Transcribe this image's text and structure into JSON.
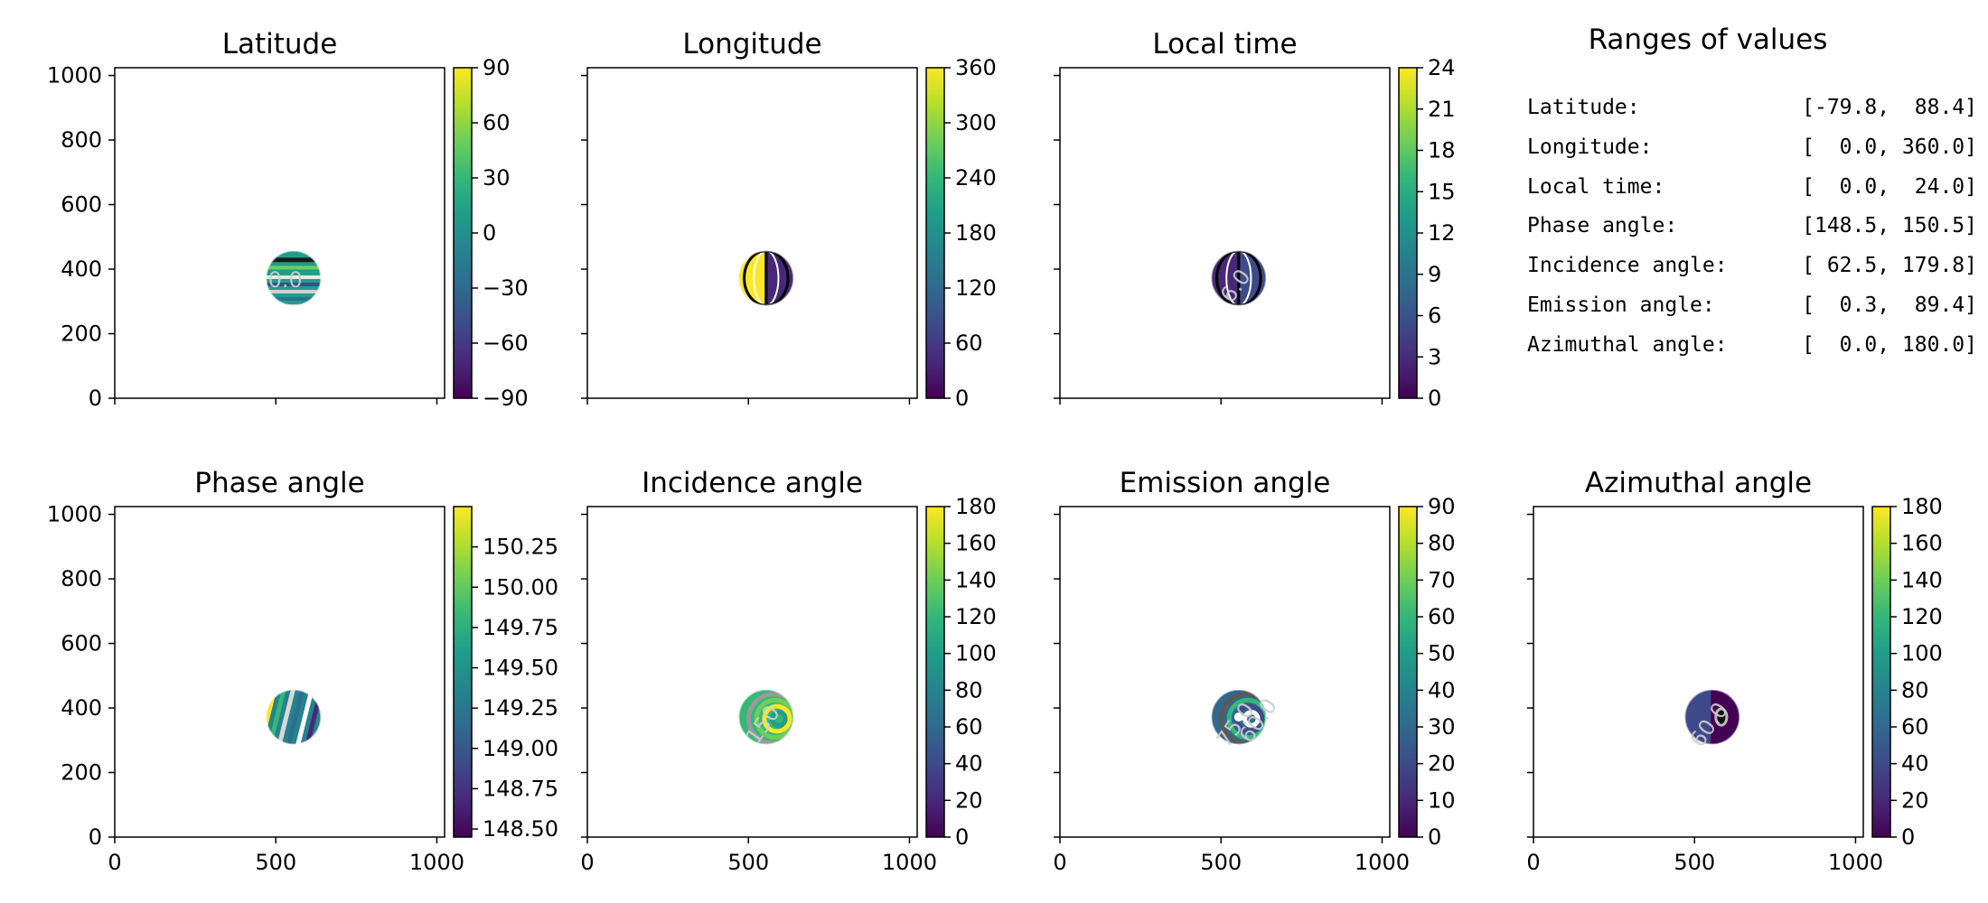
{
  "colors": {
    "cmap": [
      "#440154",
      "#482878",
      "#3e4a89",
      "#31688e",
      "#26828e",
      "#1f9e89",
      "#35b779",
      "#6ece58",
      "#b5de2b",
      "#fde725"
    ]
  },
  "ranges": {
    "title": "Ranges of values",
    "rows": [
      {
        "name": "Latitude:",
        "value": "[-79.8,  88.4]"
      },
      {
        "name": "Longitude:",
        "value": "[  0.0, 360.0]"
      },
      {
        "name": "Local time:",
        "value": "[  0.0,  24.0]"
      },
      {
        "name": "Phase angle:",
        "value": "[148.5, 150.5]"
      },
      {
        "name": "Incidence angle:",
        "value": "[ 62.5, 179.8]"
      },
      {
        "name": "Emission angle:",
        "value": "[  0.3,  89.4]"
      },
      {
        "name": "Azimuthal angle:",
        "value": "[  0.0, 180.0]"
      }
    ]
  },
  "chart_data": [
    {
      "type": "heatmap",
      "title": "Latitude",
      "xlim": [
        0,
        1024
      ],
      "ylim": [
        0,
        1024
      ],
      "xticks": [
        0,
        500,
        1000
      ],
      "yticks": [
        0,
        200,
        400,
        600,
        800,
        1000
      ],
      "colorbar": {
        "range": [
          -90,
          90
        ],
        "ticks": [
          90,
          60,
          30,
          0,
          -30,
          -60,
          -90
        ],
        "labels": [
          "90",
          "60",
          "30",
          "0",
          "−30",
          "−60",
          "−90"
        ]
      },
      "disc": {
        "center": [
          555,
          372
        ],
        "radius": 85
      },
      "contour_labels": [
        "0.0"
      ]
    },
    {
      "type": "heatmap",
      "title": "Longitude",
      "xlim": [
        0,
        1024
      ],
      "ylim": [
        0,
        1024
      ],
      "xticks": [
        0,
        500,
        1000
      ],
      "yticks": [
        0,
        200,
        400,
        600,
        800,
        1000
      ],
      "colorbar": {
        "range": [
          0,
          360
        ],
        "ticks": [
          360,
          300,
          240,
          180,
          120,
          60,
          0
        ],
        "labels": [
          "360",
          "300",
          "240",
          "180",
          "120",
          "60",
          "0"
        ]
      },
      "disc": {
        "center": [
          555,
          372
        ],
        "radius": 85
      },
      "contour_labels": []
    },
    {
      "type": "heatmap",
      "title": "Local time",
      "xlim": [
        0,
        1024
      ],
      "ylim": [
        0,
        1024
      ],
      "xticks": [
        0,
        500,
        1000
      ],
      "yticks": [
        0,
        200,
        400,
        600,
        800,
        1000
      ],
      "colorbar": {
        "range": [
          0,
          24
        ],
        "ticks": [
          24,
          21,
          18,
          15,
          12,
          9,
          6,
          3,
          0
        ],
        "labels": [
          "24",
          "21",
          "18",
          "15",
          "12",
          "9",
          "6",
          "3",
          "0"
        ]
      },
      "disc": {
        "center": [
          555,
          372
        ],
        "radius": 85
      },
      "contour_labels": [
        "6.0"
      ]
    },
    {
      "type": "heatmap",
      "title": "Phase angle",
      "xlim": [
        0,
        1024
      ],
      "ylim": [
        0,
        1024
      ],
      "xticks": [
        0,
        500,
        1000
      ],
      "yticks": [
        0,
        200,
        400,
        600,
        800,
        1000
      ],
      "colorbar": {
        "range": [
          148.45,
          150.5
        ],
        "ticks": [
          150.25,
          150.0,
          149.75,
          149.5,
          149.25,
          149.0,
          148.75,
          148.5
        ],
        "labels": [
          "150.25",
          "150.00",
          "149.75",
          "149.50",
          "149.25",
          "149.00",
          "148.75",
          "148.50"
        ]
      },
      "disc": {
        "center": [
          555,
          372
        ],
        "radius": 85
      },
      "contour_labels": []
    },
    {
      "type": "heatmap",
      "title": "Incidence angle",
      "xlim": [
        0,
        1024
      ],
      "ylim": [
        0,
        1024
      ],
      "xticks": [
        0,
        500,
        1000
      ],
      "yticks": [
        0,
        200,
        400,
        600,
        800,
        1000
      ],
      "colorbar": {
        "range": [
          0,
          180
        ],
        "ticks": [
          180,
          160,
          140,
          120,
          100,
          80,
          60,
          40,
          20,
          0
        ],
        "labels": [
          "180",
          "160",
          "140",
          "120",
          "100",
          "80",
          "60",
          "40",
          "20",
          "0"
        ]
      },
      "disc": {
        "center": [
          555,
          372
        ],
        "radius": 85
      },
      "contour_labels": [
        "150"
      ]
    },
    {
      "type": "heatmap",
      "title": "Emission angle",
      "xlim": [
        0,
        1024
      ],
      "ylim": [
        0,
        1024
      ],
      "xticks": [
        0,
        500,
        1000
      ],
      "yticks": [
        0,
        200,
        400,
        600,
        800,
        1000
      ],
      "colorbar": {
        "range": [
          0,
          90
        ],
        "ticks": [
          90,
          80,
          70,
          60,
          50,
          40,
          30,
          20,
          10,
          0
        ],
        "labels": [
          "90",
          "80",
          "70",
          "60",
          "50",
          "40",
          "30",
          "20",
          "10",
          "0"
        ]
      },
      "disc": {
        "center": [
          555,
          372
        ],
        "radius": 85
      },
      "contour_labels": [
        "75.0",
        "60.0"
      ]
    },
    {
      "type": "heatmap",
      "title": "Azimuthal angle",
      "xlim": [
        0,
        1024
      ],
      "ylim": [
        0,
        1024
      ],
      "xticks": [
        0,
        500,
        1000
      ],
      "yticks": [
        0,
        200,
        400,
        600,
        800,
        1000
      ],
      "colorbar": {
        "range": [
          0,
          180
        ],
        "ticks": [
          180,
          160,
          140,
          120,
          100,
          80,
          60,
          40,
          20,
          0
        ],
        "labels": [
          "180",
          "160",
          "140",
          "120",
          "100",
          "80",
          "60",
          "40",
          "20",
          "0"
        ]
      },
      "disc": {
        "center": [
          555,
          372
        ],
        "radius": 85
      },
      "contour_labels": [
        "60.0"
      ]
    }
  ]
}
